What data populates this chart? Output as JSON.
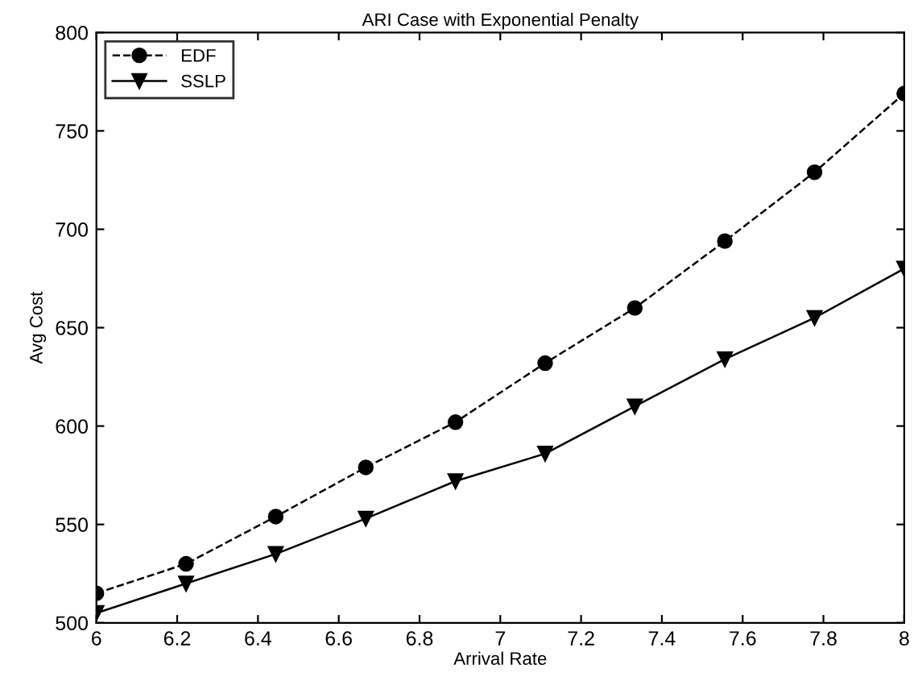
{
  "chart_data": {
    "type": "line",
    "title": "ARI Case with Exponential Penalty",
    "xlabel": "Arrival Rate",
    "ylabel": "Avg Cost",
    "x": [
      6,
      6.222,
      6.444,
      6.667,
      6.889,
      7.111,
      7.333,
      7.556,
      7.778,
      8
    ],
    "series": [
      {
        "name": "EDF",
        "color": "#000000",
        "marker": "circle",
        "line_style": "dashed",
        "values": [
          515,
          530,
          554,
          579,
          602,
          632,
          660,
          694,
          729,
          769
        ]
      },
      {
        "name": "SSLP",
        "color": "#000000",
        "marker": "triangle",
        "line_style": "solid",
        "values": [
          505,
          520,
          535,
          553,
          572,
          586,
          610,
          634,
          655,
          680
        ]
      }
    ],
    "xlim": [
      6,
      8
    ],
    "xticks": [
      6,
      6.2,
      6.4,
      6.6,
      6.8,
      7,
      7.2,
      7.4,
      7.6,
      7.8,
      8
    ],
    "ylim": [
      500,
      800
    ],
    "yticks": [
      500,
      550,
      600,
      650,
      700,
      750,
      800
    ],
    "grid": false,
    "legend": "top left"
  }
}
